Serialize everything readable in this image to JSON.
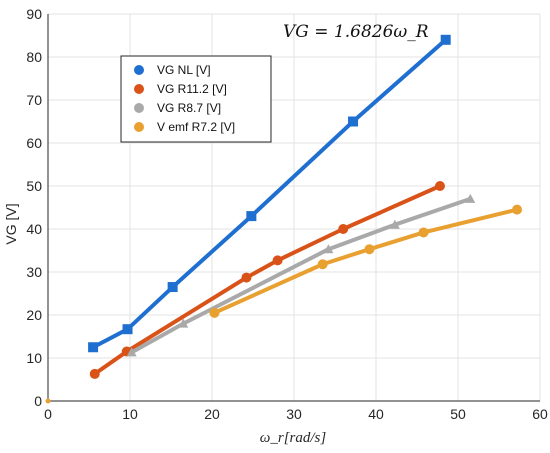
{
  "chart_data": {
    "type": "line",
    "title": "",
    "annotation": "VG = 1.6826ω_R",
    "xlabel": "ω_r[rad/s]",
    "ylabel": "VG [V]",
    "xlim": [
      0,
      60
    ],
    "ylim": [
      0,
      90
    ],
    "xticks": [
      0,
      10,
      20,
      30,
      40,
      50,
      60
    ],
    "yticks": [
      0,
      10,
      20,
      30,
      40,
      50,
      60,
      70,
      80,
      90
    ],
    "grid": true,
    "legend_position": "top-left",
    "series": [
      {
        "name": "VG NL [V]",
        "color": "#1f6fd1",
        "marker": "square",
        "x": [
          5.5,
          9.7,
          15.2,
          24.8,
          37.2,
          48.5
        ],
        "y": [
          12.5,
          16.7,
          26.5,
          43,
          65,
          84
        ]
      },
      {
        "name": "VG R11.2 [V]",
        "color": "#d95319",
        "marker": "circle",
        "x": [
          5.7,
          9.6,
          24.2,
          28,
          36,
          47.8
        ],
        "y": [
          6.3,
          11.5,
          28.7,
          32.7,
          40,
          50
        ]
      },
      {
        "name": "VG R8.7 [V]",
        "color": "#a9a9a9",
        "marker": "triangle",
        "x": [
          10.2,
          16.5,
          34.2,
          42.3,
          51.5
        ],
        "y": [
          11.3,
          18,
          35.3,
          41,
          47
        ]
      },
      {
        "name": "V emf R7.2 [V]",
        "color": "#e8a030",
        "marker": "circle",
        "x": [
          20.3,
          33.5,
          39.2,
          45.8,
          57.2
        ],
        "y": [
          20.5,
          31.8,
          35.3,
          39.2,
          44.5
        ]
      }
    ]
  }
}
